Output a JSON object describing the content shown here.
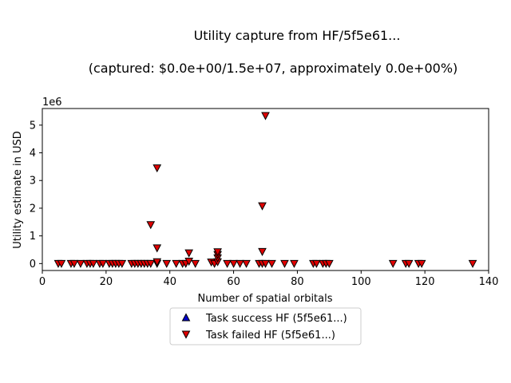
{
  "chart_data": {
    "type": "scatter",
    "title": "Utility capture from HF/5f5e61...",
    "subtitle": "(captured: $0.0e+00/1.5e+07, approximately 0.0e+00%)",
    "xlabel": "Number of spatial orbitals",
    "ylabel": "Utility estimate in USD",
    "y_offset_label": "1e6",
    "xlim": [
      0,
      140
    ],
    "ylim": [
      -250000,
      5600000
    ],
    "x_ticks": [
      0,
      20,
      40,
      60,
      80,
      100,
      120,
      140
    ],
    "y_ticks": [
      0,
      1,
      2,
      3,
      4,
      5
    ],
    "y_tick_scale": 1000000,
    "grid": false,
    "legend_placement": "below",
    "series": [
      {
        "name": "Task success HF (5f5e61...)",
        "marker": "triangle-up",
        "color": "#0000cc",
        "points": []
      },
      {
        "name": "Task failed HF (5f5e61...)",
        "marker": "triangle-down",
        "color": "#e00000",
        "points": [
          [
            5,
            0
          ],
          [
            6,
            0
          ],
          [
            9,
            0
          ],
          [
            10,
            0
          ],
          [
            12,
            0
          ],
          [
            14,
            0
          ],
          [
            15,
            0
          ],
          [
            16,
            0
          ],
          [
            18,
            0
          ],
          [
            19,
            0
          ],
          [
            21,
            0
          ],
          [
            22,
            0
          ],
          [
            23,
            0
          ],
          [
            24,
            0
          ],
          [
            25,
            0
          ],
          [
            28,
            0
          ],
          [
            29,
            0
          ],
          [
            30,
            0
          ],
          [
            31,
            0
          ],
          [
            32,
            0
          ],
          [
            33,
            0
          ],
          [
            34,
            0
          ],
          [
            34,
            1400000
          ],
          [
            36,
            0
          ],
          [
            36,
            60000
          ],
          [
            36,
            560000
          ],
          [
            36,
            3450000
          ],
          [
            39,
            0
          ],
          [
            42,
            0
          ],
          [
            44,
            0
          ],
          [
            45,
            0
          ],
          [
            46,
            80000
          ],
          [
            46,
            380000
          ],
          [
            48,
            0
          ],
          [
            53,
            50000
          ],
          [
            54,
            0
          ],
          [
            55,
            60000
          ],
          [
            55,
            200000
          ],
          [
            55,
            320000
          ],
          [
            55,
            420000
          ],
          [
            58,
            0
          ],
          [
            60,
            0
          ],
          [
            62,
            0
          ],
          [
            64,
            0
          ],
          [
            68,
            0
          ],
          [
            69,
            0
          ],
          [
            69,
            430000
          ],
          [
            69,
            2080000
          ],
          [
            70,
            0
          ],
          [
            70,
            5340000
          ],
          [
            72,
            0
          ],
          [
            76,
            0
          ],
          [
            79,
            0
          ],
          [
            85,
            0
          ],
          [
            86,
            0
          ],
          [
            88,
            0
          ],
          [
            89,
            0
          ],
          [
            90,
            0
          ],
          [
            110,
            0
          ],
          [
            114,
            0
          ],
          [
            115,
            0
          ],
          [
            118,
            0
          ],
          [
            119,
            0
          ],
          [
            135,
            0
          ]
        ]
      }
    ]
  }
}
